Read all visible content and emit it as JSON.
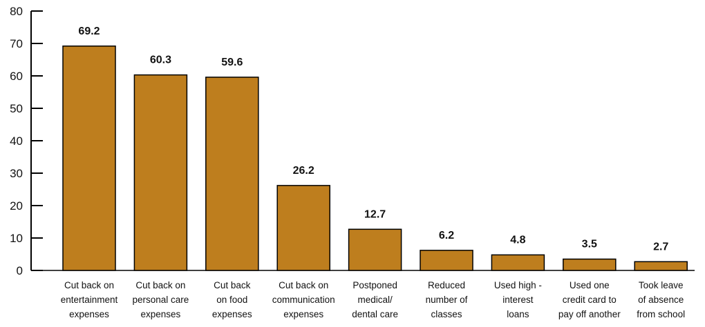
{
  "chart_data": {
    "type": "bar",
    "title": "",
    "xlabel": "",
    "ylabel": "",
    "ylim": [
      0,
      80
    ],
    "yticks": [
      0,
      10,
      20,
      30,
      40,
      50,
      60,
      70,
      80
    ],
    "grid": false,
    "legend": "none",
    "bar_color": "#BE7E1E",
    "categories": [
      [
        "Cut back on",
        "entertainment",
        "expenses"
      ],
      [
        "Cut back on",
        "personal care",
        "expenses"
      ],
      [
        "Cut back",
        "on food",
        "expenses"
      ],
      [
        "Cut back on",
        "communication",
        "expenses"
      ],
      [
        "Postponed",
        "medical/",
        "dental care"
      ],
      [
        "Reduced",
        "number of",
        "classes"
      ],
      [
        "Used high -",
        "interest",
        "loans"
      ],
      [
        "Used one",
        "credit card to",
        "pay off another"
      ],
      [
        "Took leave",
        "of absence",
        "from school"
      ]
    ],
    "values": [
      69.2,
      60.3,
      59.6,
      26.2,
      12.7,
      6.2,
      4.8,
      3.5,
      2.7
    ],
    "value_labels": [
      "69.2",
      "60.3",
      "59.6",
      "26.2",
      "12.7",
      "6.2",
      "4.8",
      "3.5",
      "2.7"
    ]
  }
}
